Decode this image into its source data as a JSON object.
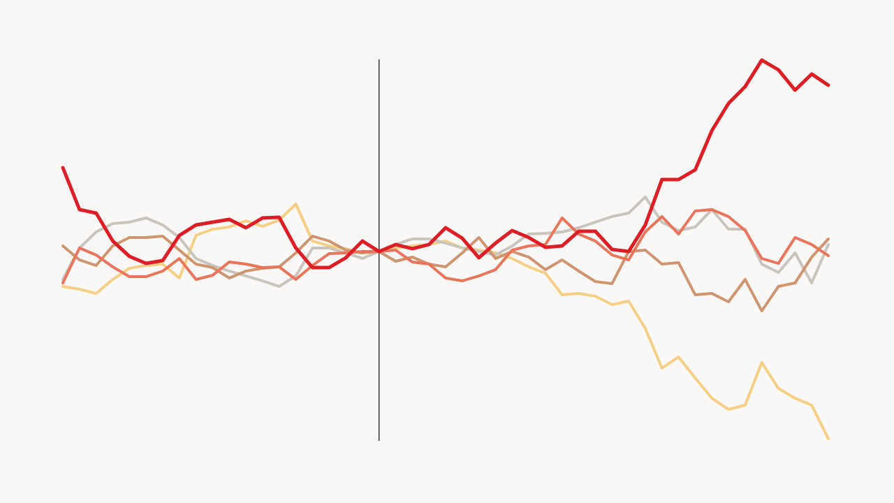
{
  "chart_data": {
    "type": "line",
    "x": [
      -19,
      -18,
      -17,
      -16,
      -15,
      -14,
      -13,
      -12,
      -11,
      -10,
      -9,
      -8,
      -7,
      -6,
      -5,
      -4,
      -3,
      -2,
      -1,
      0,
      1,
      2,
      3,
      4,
      5,
      6,
      7,
      8,
      9,
      10,
      11,
      12,
      13,
      14,
      15,
      16,
      17,
      18,
      19,
      20,
      21,
      22,
      23,
      24,
      25,
      26,
      27
    ],
    "xlim": [
      -19,
      27
    ],
    "ylim": [
      -360,
      360
    ],
    "vline": 0,
    "series": [
      {
        "color": "#f6cf86",
        "values": [
          -50,
          -54,
          -60,
          -40,
          -24,
          -20,
          -18,
          -38,
          23,
          32,
          35,
          44,
          36,
          45,
          68,
          15,
          8,
          4,
          -2,
          0,
          5,
          8,
          10,
          15,
          5,
          2,
          -2,
          -10,
          -22,
          -31,
          -62,
          -60,
          -64,
          -76,
          -71,
          -110,
          -167,
          -151,
          -181,
          -210,
          -226,
          -220,
          -159,
          -196,
          -210,
          -220,
          -268
        ]
      },
      {
        "color": "#c9c5bd",
        "values": [
          -40,
          5,
          28,
          40,
          42,
          48,
          38,
          20,
          -10,
          -20,
          -28,
          -35,
          -42,
          -50,
          -35,
          5,
          5,
          -2,
          -10,
          0,
          10,
          18,
          18,
          12,
          5,
          0,
          -5,
          8,
          25,
          26,
          28,
          34,
          42,
          50,
          55,
          78,
          42,
          30,
          35,
          60,
          32,
          32,
          -18,
          -30,
          -2,
          -45,
          10
        ]
      },
      {
        "color": "#cf9470",
        "values": [
          8,
          -12,
          -20,
          8,
          20,
          20,
          22,
          2,
          -18,
          -23,
          -38,
          -28,
          -24,
          -22,
          -2,
          22,
          15,
          2,
          -2,
          0,
          -14,
          -8,
          -18,
          -22,
          -2,
          20,
          -10,
          0,
          -8,
          -26,
          -12,
          -28,
          -43,
          -46,
          0,
          2,
          -18,
          -16,
          -62,
          -60,
          -72,
          -40,
          -85,
          -50,
          -45,
          -8,
          18
        ]
      },
      {
        "color": "#e9755c",
        "values": [
          -45,
          5,
          -5,
          -22,
          -36,
          -36,
          -28,
          -10,
          -40,
          -34,
          -15,
          -18,
          -23,
          -22,
          -40,
          -20,
          -3,
          -2,
          0,
          0,
          2,
          -15,
          -18,
          -38,
          -42,
          -35,
          -26,
          2,
          8,
          10,
          48,
          25,
          15,
          -5,
          -12,
          28,
          50,
          25,
          58,
          60,
          50,
          30,
          -10,
          -17,
          20,
          10,
          -6
        ]
      },
      {
        "color": "#dc1f26",
        "values": [
          120,
          60,
          55,
          15,
          -7,
          -17,
          -13,
          23,
          38,
          42,
          46,
          34,
          48,
          49,
          5,
          -23,
          -23,
          -9,
          15,
          0,
          10,
          4,
          10,
          34,
          19,
          -9,
          12,
          30,
          20,
          6,
          8,
          29,
          29,
          3,
          0,
          38,
          103,
          103,
          117,
          173,
          212,
          236,
          274,
          260,
          231,
          254,
          238
        ]
      }
    ]
  }
}
